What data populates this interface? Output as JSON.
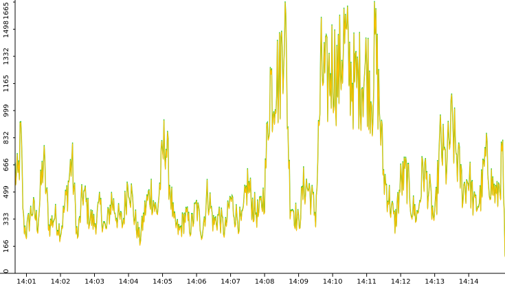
{
  "chart_data": {
    "type": "line",
    "title": "",
    "xlabel": "",
    "ylabel": "",
    "ylim": [
      0,
      1665
    ],
    "xlim": [
      "14:00:40",
      "14:15:04"
    ],
    "grid": false,
    "legend": "none",
    "y_ticks": [
      0,
      166,
      333,
      499,
      666,
      832,
      999,
      1165,
      1332,
      1498,
      1665
    ],
    "x_ticks": [
      "14:01",
      "14:02",
      "14:03",
      "14:04",
      "14:05",
      "14:06",
      "14:07",
      "14:08",
      "14:09",
      "14:10",
      "14:11",
      "14:12",
      "14:13",
      "14:14"
    ],
    "series": [
      {
        "color": "#ffbf00",
        "x": [
          "14:00:40",
          "14:00:45",
          "14:00:50",
          "14:00:55",
          "14:01:00",
          "14:01:10",
          "14:01:20",
          "14:01:30",
          "14:01:40",
          "14:01:50",
          "14:02:00",
          "14:02:10",
          "14:02:20",
          "14:02:30",
          "14:02:40",
          "14:02:50",
          "14:03:00",
          "14:03:10",
          "14:03:20",
          "14:03:30",
          "14:03:40",
          "14:03:50",
          "14:04:00",
          "14:04:10",
          "14:04:20",
          "14:04:30",
          "14:04:40",
          "14:04:50",
          "14:05:00",
          "14:05:05",
          "14:05:10",
          "14:05:20",
          "14:05:30",
          "14:05:40",
          "14:05:50",
          "14:06:00",
          "14:06:10",
          "14:06:20",
          "14:06:30",
          "14:06:40",
          "14:06:50",
          "14:07:00",
          "14:07:10",
          "14:07:20",
          "14:07:30",
          "14:07:40",
          "14:07:50",
          "14:08:00",
          "14:08:10",
          "14:08:15",
          "14:08:20",
          "14:08:25",
          "14:08:30",
          "14:08:35",
          "14:08:40",
          "14:08:45",
          "14:08:50",
          "14:09:00",
          "14:09:10",
          "14:09:20",
          "14:09:30",
          "14:09:40",
          "14:09:50",
          "14:10:00",
          "14:10:10",
          "14:10:20",
          "14:10:30",
          "14:10:40",
          "14:10:50",
          "14:11:00",
          "14:11:10",
          "14:11:15",
          "14:11:20",
          "14:11:30",
          "14:11:40",
          "14:11:50",
          "14:12:00",
          "14:12:10",
          "14:12:20",
          "14:12:30",
          "14:12:40",
          "14:12:50",
          "14:13:00",
          "14:13:10",
          "14:13:20",
          "14:13:30",
          "14:13:40",
          "14:13:50",
          "14:14:00",
          "14:14:10",
          "14:14:20",
          "14:14:30",
          "14:14:40",
          "14:14:50",
          "14:15:00",
          "14:15:04"
        ],
        "values": [
          620,
          560,
          830,
          300,
          250,
          400,
          300,
          700,
          280,
          350,
          250,
          450,
          700,
          200,
          500,
          350,
          300,
          400,
          250,
          450,
          350,
          300,
          600,
          350,
          200,
          400,
          500,
          350,
          700,
          850,
          650,
          300,
          250,
          350,
          280,
          400,
          250,
          500,
          300,
          350,
          250,
          450,
          350,
          300,
          550,
          400,
          350,
          500,
          1200,
          1100,
          1250,
          1150,
          1350,
          1650,
          1050,
          450,
          400,
          300,
          550,
          500,
          350,
          1250,
          1150,
          1300,
          1200,
          1450,
          1250,
          1150,
          1200,
          1250,
          1100,
          1400,
          1150,
          600,
          450,
          300,
          550,
          600,
          400,
          350,
          650,
          500,
          300,
          800,
          650,
          900,
          700,
          500,
          600,
          400,
          450,
          700,
          550,
          450,
          700,
          100
        ]
      }
    ],
    "highlight_color": "#33cc33"
  }
}
